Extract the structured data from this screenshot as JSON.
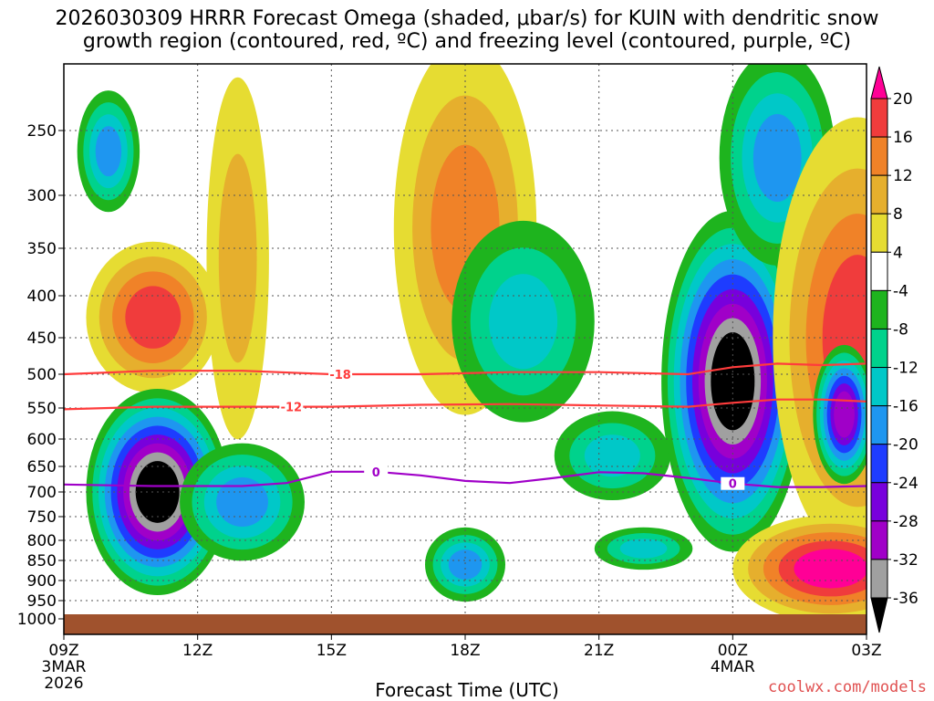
{
  "chart_data": {
    "type": "heatmap",
    "title_line1": "2026030309 HRRR Forecast Omega (shaded, μbar/s) for KUIN with dendritic snow",
    "title_line2": "growth region (contoured, red, ºC) and freezing level (contoured, purple, ºC)",
    "xlabel": "Forecast Time (UTC)",
    "x_hours_range": [
      0,
      18
    ],
    "y_pressure_range": [
      1000,
      200
    ],
    "x_ticks": [
      {
        "hour": 0,
        "label": "09Z",
        "sub1": "3MAR",
        "sub2": "2026"
      },
      {
        "hour": 3,
        "label": "12Z",
        "sub1": "",
        "sub2": ""
      },
      {
        "hour": 6,
        "label": "15Z",
        "sub1": "",
        "sub2": ""
      },
      {
        "hour": 9,
        "label": "18Z",
        "sub1": "",
        "sub2": ""
      },
      {
        "hour": 12,
        "label": "21Z",
        "sub1": "",
        "sub2": ""
      },
      {
        "hour": 15,
        "label": "00Z",
        "sub1": "4MAR",
        "sub2": ""
      },
      {
        "hour": 18,
        "label": "03Z",
        "sub1": "",
        "sub2": ""
      }
    ],
    "y_ticks": [
      250,
      300,
      350,
      400,
      450,
      500,
      550,
      600,
      650,
      700,
      750,
      800,
      850,
      900,
      950,
      1000
    ],
    "colorbar": {
      "labels": [
        "20",
        "16",
        "12",
        "8",
        "4",
        "-4",
        "-8",
        "-12",
        "-16",
        "-20",
        "-24",
        "-28",
        "-32",
        "-36"
      ],
      "colors": [
        "#ff0096",
        "#f03c3c",
        "#f08228",
        "#e6af2d",
        "#e6dc32",
        "#ffffff",
        "#1eb41e",
        "#00d28c",
        "#00c8c8",
        "#1e96f0",
        "#1e3cff",
        "#7800dc",
        "#a000c8",
        "#a0a0a0",
        "#000000"
      ]
    },
    "contours": {
      "dendritic_-18": {
        "label": "-18",
        "color": "#ff3c3c",
        "points": [
          [
            0,
            500
          ],
          [
            2,
            495
          ],
          [
            4,
            495
          ],
          [
            6,
            500
          ],
          [
            8,
            500
          ],
          [
            10,
            497
          ],
          [
            12,
            497
          ],
          [
            14,
            500
          ],
          [
            15,
            490
          ],
          [
            16,
            485
          ],
          [
            17,
            487
          ],
          [
            18,
            485
          ]
        ]
      },
      "dendritic_-12": {
        "label": "-12",
        "color": "#ff3c3c",
        "points": [
          [
            0,
            552
          ],
          [
            2,
            548
          ],
          [
            4,
            548
          ],
          [
            6,
            548
          ],
          [
            8,
            545
          ],
          [
            10,
            544
          ],
          [
            12,
            546
          ],
          [
            14,
            548
          ],
          [
            15,
            542
          ],
          [
            16,
            537
          ],
          [
            17,
            537
          ],
          [
            18,
            540
          ]
        ]
      },
      "freezing_0": {
        "label": "0",
        "color": "#a000c8",
        "points": [
          [
            0,
            685
          ],
          [
            2,
            688
          ],
          [
            4,
            688
          ],
          [
            5,
            682
          ],
          [
            6,
            660
          ],
          [
            7,
            660
          ],
          [
            8,
            667
          ],
          [
            9,
            678
          ],
          [
            10,
            682
          ],
          [
            11,
            672
          ],
          [
            12,
            661
          ],
          [
            13,
            663
          ],
          [
            14,
            672
          ],
          [
            15,
            683
          ],
          [
            16,
            690
          ],
          [
            17,
            690
          ],
          [
            18,
            688
          ]
        ]
      }
    },
    "omega_blobs": [
      {
        "x": 1.0,
        "p": 265,
        "rx": 0.7,
        "rp": 45,
        "min": -16
      },
      {
        "x": 2.0,
        "p": 425,
        "rx": 1.5,
        "rp": 90,
        "max": 16
      },
      {
        "x": 2.1,
        "p": 700,
        "rx": 1.6,
        "rp": 200,
        "min": -36
      },
      {
        "x": 4.0,
        "p": 720,
        "rx": 1.4,
        "rp": 120,
        "min": -16
      },
      {
        "x": 3.9,
        "p": 360,
        "rx": 0.7,
        "rp": 170,
        "max": 8
      },
      {
        "x": 9.0,
        "p": 330,
        "rx": 1.6,
        "rp": 160,
        "max": 12
      },
      {
        "x": 10.3,
        "p": 430,
        "rx": 1.6,
        "rp": 120,
        "min": -12
      },
      {
        "x": 12.3,
        "p": 630,
        "rx": 1.3,
        "rp": 80,
        "min": -12
      },
      {
        "x": 9.0,
        "p": 860,
        "rx": 0.9,
        "rp": 90,
        "min": -16
      },
      {
        "x": 13.0,
        "p": 820,
        "rx": 1.1,
        "rp": 50,
        "min": -12
      },
      {
        "x": 15.0,
        "p": 510,
        "rx": 1.6,
        "rp": 230,
        "min": -36
      },
      {
        "x": 16.0,
        "p": 270,
        "rx": 1.3,
        "rp": 80,
        "min": -16
      },
      {
        "x": 17.8,
        "p": 450,
        "rx": 1.9,
        "rp": 250,
        "max": 16
      },
      {
        "x": 17.5,
        "p": 560,
        "rx": 0.7,
        "rp": 110,
        "min": -28
      },
      {
        "x": 17.2,
        "p": 870,
        "rx": 2.2,
        "rp": 130,
        "max": 20
      }
    ]
  },
  "credit": "coolwx.com/models"
}
